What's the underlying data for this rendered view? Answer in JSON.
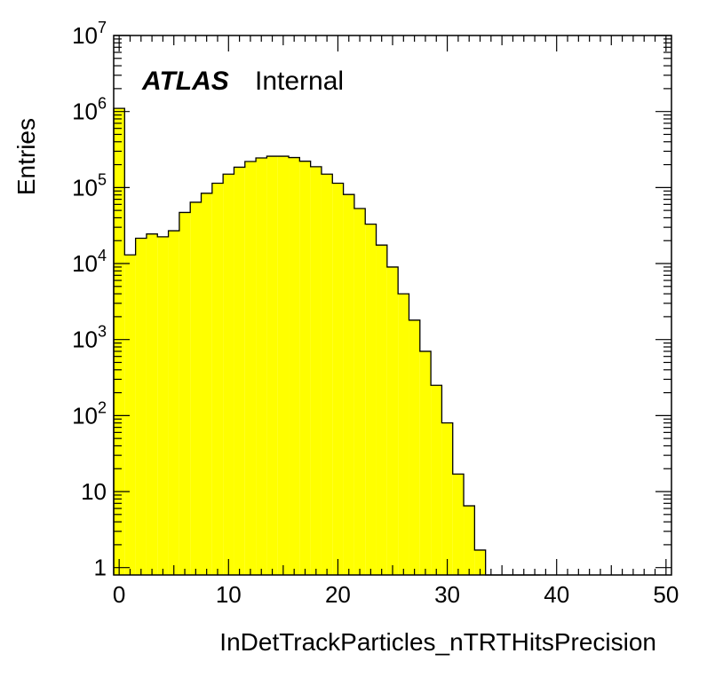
{
  "chart_data": {
    "type": "bar",
    "histogram_style": "filled-step",
    "fill_color": "#ffff00",
    "line_color": "#000000",
    "title": "",
    "xlabel": "InDetTrackParticles_nTRTHitsPrecision",
    "ylabel": "Entries",
    "label_bold": "ATLAS",
    "label_status": "Internal",
    "xlim": [
      -0.5,
      50.5
    ],
    "ylim": [
      0.8,
      10000000
    ],
    "y_scale": "log",
    "grid": false,
    "x_ticks": [
      0,
      10,
      20,
      30,
      40,
      50
    ],
    "x_tick_labels": [
      "0",
      "10",
      "20",
      "30",
      "40",
      "50"
    ],
    "y_ticks": [
      {
        "value": 1,
        "base": "1",
        "exp": ""
      },
      {
        "value": 10,
        "base": "10",
        "exp": ""
      },
      {
        "value": 100,
        "base": "10",
        "exp": "2"
      },
      {
        "value": 1000,
        "base": "10",
        "exp": "3"
      },
      {
        "value": 10000,
        "base": "10",
        "exp": "4"
      },
      {
        "value": 100000,
        "base": "10",
        "exp": "5"
      },
      {
        "value": 1000000,
        "base": "10",
        "exp": "6"
      },
      {
        "value": 10000000,
        "base": "10",
        "exp": "7"
      }
    ],
    "bin_width": 1,
    "bin_starts": [
      -0.5,
      0.5,
      1.5,
      2.5,
      3.5,
      4.5,
      5.5,
      6.5,
      7.5,
      8.5,
      9.5,
      10.5,
      11.5,
      12.5,
      13.5,
      14.5,
      15.5,
      16.5,
      17.5,
      18.5,
      19.5,
      20.5,
      21.5,
      22.5,
      23.5,
      24.5,
      25.5,
      26.5,
      27.5,
      28.5,
      29.5,
      30.5,
      31.5,
      32.5,
      33.5,
      34.5,
      35.5,
      36.5,
      37.5
    ],
    "values": [
      1100000,
      13000,
      21500,
      24500,
      22500,
      27000,
      47000,
      64000,
      84000,
      114000,
      150000,
      185000,
      220000,
      245000,
      258000,
      258000,
      248000,
      222000,
      188000,
      150000,
      114000,
      81000,
      53000,
      33000,
      17500,
      9000,
      4000,
      1800,
      700,
      250,
      80,
      17,
      6.5,
      1.7,
      0.0,
      0.0,
      0.0,
      0.0,
      0.0
    ]
  }
}
